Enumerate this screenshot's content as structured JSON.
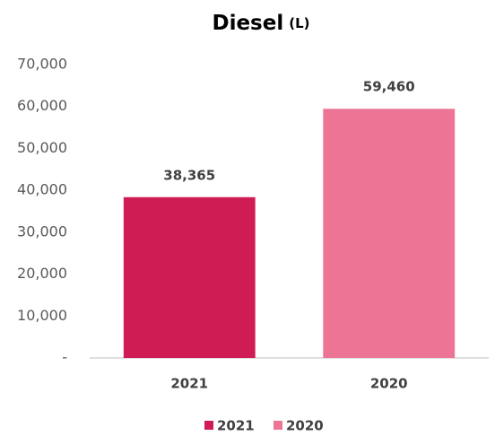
{
  "chart_data": {
    "type": "bar",
    "title": "Diesel",
    "unit": "(L)",
    "categories": [
      "2021",
      "2020"
    ],
    "values": [
      38365,
      59460
    ],
    "value_labels": [
      "38,365",
      "59,460"
    ],
    "colors": [
      "#d01c55",
      "#ec7596"
    ],
    "ylim": [
      0,
      70000
    ],
    "yticks": [
      {
        "value": 0,
        "label": "-"
      },
      {
        "value": 10000,
        "label": "10,000"
      },
      {
        "value": 20000,
        "label": "20,000"
      },
      {
        "value": 30000,
        "label": "30,000"
      },
      {
        "value": 40000,
        "label": "40,000"
      },
      {
        "value": 50000,
        "label": "50,000"
      },
      {
        "value": 60000,
        "label": "60,000"
      },
      {
        "value": 70000,
        "label": "70,000"
      }
    ],
    "grid": false,
    "legend": "bottom"
  }
}
